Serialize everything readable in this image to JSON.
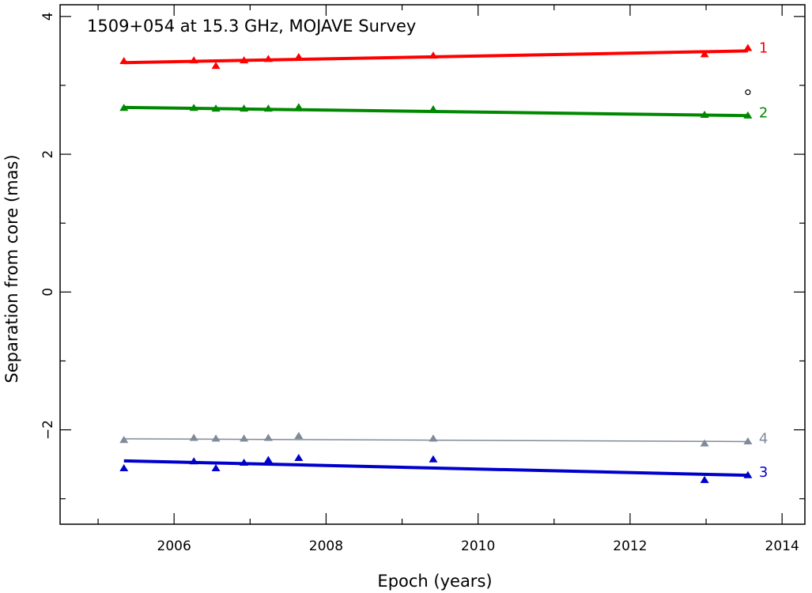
{
  "chart_data": {
    "type": "scatter",
    "title": "1509+054 at 15.3 GHz, MOJAVE Survey",
    "xlabel": "Epoch (years)",
    "ylabel": "Separation from core (mas)",
    "xlim": [
      2004.5,
      2014.3
    ],
    "ylim": [
      -3.37,
      4.17
    ],
    "x_ticks": [
      2006,
      2008,
      2010,
      2012,
      2014
    ],
    "x_tick_labels": [
      "2006",
      "2008",
      "2010",
      "2012",
      "2014"
    ],
    "y_ticks": [
      -2,
      0,
      2,
      4
    ],
    "y_tick_labels": [
      "−2",
      "0",
      "2",
      "4"
    ],
    "grid": false,
    "series": [
      {
        "name": "1",
        "color": "#ff0000",
        "marker": "triangle",
        "x": [
          2005.34,
          2006.26,
          2006.55,
          2006.92,
          2007.24,
          2007.64,
          2009.41,
          2012.98,
          2013.55
        ],
        "y": [
          3.35,
          3.36,
          3.28,
          3.36,
          3.38,
          3.41,
          3.43,
          3.45,
          3.54
        ],
        "fit": [
          [
            2005.34,
            3.33
          ],
          [
            2013.55,
            3.5
          ]
        ],
        "fit_width": 4
      },
      {
        "name": "2",
        "color": "#008800",
        "marker": "triangle",
        "x": [
          2005.34,
          2006.26,
          2006.55,
          2006.92,
          2007.24,
          2007.64,
          2009.41,
          2012.98,
          2013.55
        ],
        "y": [
          2.67,
          2.67,
          2.66,
          2.66,
          2.66,
          2.68,
          2.65,
          2.57,
          2.56
        ],
        "fit": [
          [
            2005.34,
            2.68
          ],
          [
            2013.55,
            2.56
          ]
        ],
        "fit_width": 4
      },
      {
        "name": "3",
        "color": "#0000cc",
        "marker": "triangle",
        "x": [
          2005.34,
          2006.26,
          2006.55,
          2006.92,
          2007.24,
          2007.64,
          2009.41,
          2012.98,
          2013.55
        ],
        "y": [
          -2.56,
          -2.46,
          -2.56,
          -2.48,
          -2.44,
          -2.41,
          -2.43,
          -2.73,
          -2.66
        ],
        "fit": [
          [
            2005.34,
            -2.45
          ],
          [
            2013.55,
            -2.66
          ]
        ],
        "fit_width": 4
      },
      {
        "name": "4",
        "color": "#808a99",
        "marker": "triangle",
        "x": [
          2005.34,
          2006.26,
          2006.55,
          2006.92,
          2007.24,
          2007.64,
          2009.41,
          2012.98,
          2013.55
        ],
        "y": [
          -2.15,
          -2.12,
          -2.13,
          -2.13,
          -2.12,
          -2.09,
          -2.13,
          -2.2,
          -2.17
        ],
        "fit": [
          [
            2005.34,
            -2.13
          ],
          [
            2013.55,
            -2.17
          ]
        ],
        "fit_width": 1.5
      }
    ],
    "extra_points": [
      {
        "x": 2013.55,
        "y": 2.9,
        "marker": "open-circle",
        "color": "#000000"
      }
    ]
  }
}
